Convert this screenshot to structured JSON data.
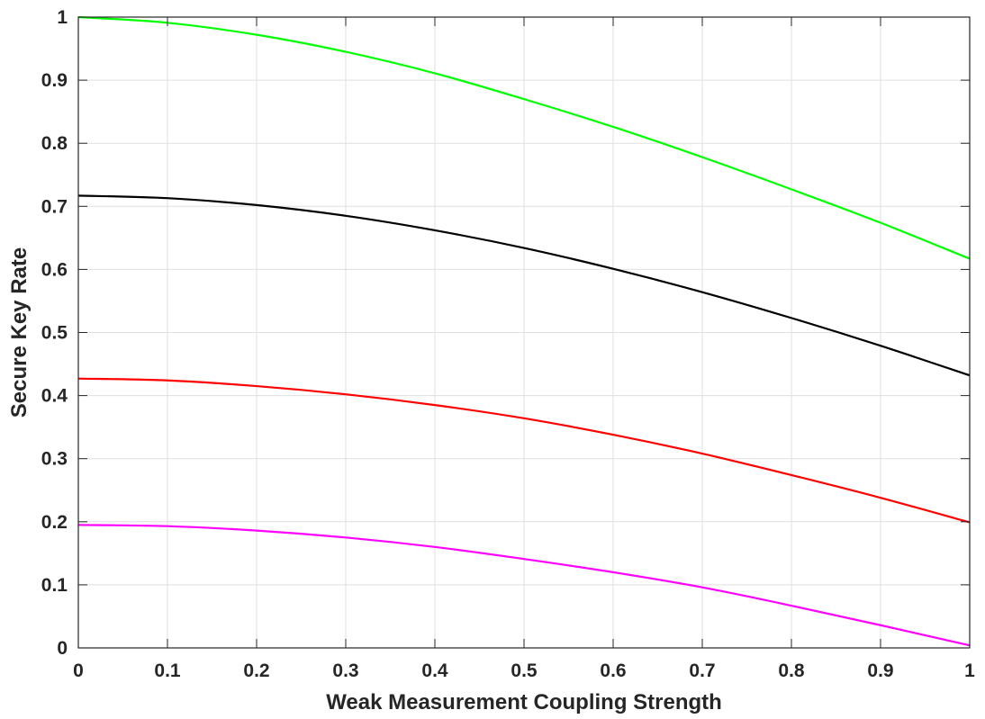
{
  "chart_data": {
    "type": "line",
    "title": "",
    "xlabel": "Weak Measurement Coupling Strength",
    "ylabel": "Secure Key Rate",
    "xlim": [
      0,
      1
    ],
    "ylim": [
      0,
      1
    ],
    "grid": true,
    "x_ticks": [
      "0",
      "0.1",
      "0.2",
      "0.3",
      "0.4",
      "0.5",
      "0.6",
      "0.7",
      "0.8",
      "0.9",
      "1"
    ],
    "y_ticks": [
      "0",
      "0.1",
      "0.2",
      "0.3",
      "0.4",
      "0.5",
      "0.6",
      "0.7",
      "0.8",
      "0.9",
      "1"
    ],
    "x": [
      0,
      0.1,
      0.2,
      0.3,
      0.4,
      0.5,
      0.6,
      0.7,
      0.8,
      0.9,
      1.0
    ],
    "series": [
      {
        "color": "#00ff00",
        "values": [
          1.0,
          0.991,
          0.972,
          0.945,
          0.911,
          0.87,
          0.826,
          0.778,
          0.727,
          0.674,
          0.617
        ]
      },
      {
        "color": "#000000",
        "values": [
          0.717,
          0.713,
          0.702,
          0.685,
          0.662,
          0.634,
          0.601,
          0.564,
          0.523,
          0.479,
          0.432
        ]
      },
      {
        "color": "#ff0000",
        "values": [
          0.427,
          0.424,
          0.415,
          0.402,
          0.385,
          0.364,
          0.338,
          0.308,
          0.274,
          0.238,
          0.199
        ]
      },
      {
        "color": "#ff00ff",
        "values": [
          0.195,
          0.193,
          0.186,
          0.175,
          0.16,
          0.141,
          0.12,
          0.096,
          0.067,
          0.036,
          0.004
        ]
      }
    ]
  }
}
